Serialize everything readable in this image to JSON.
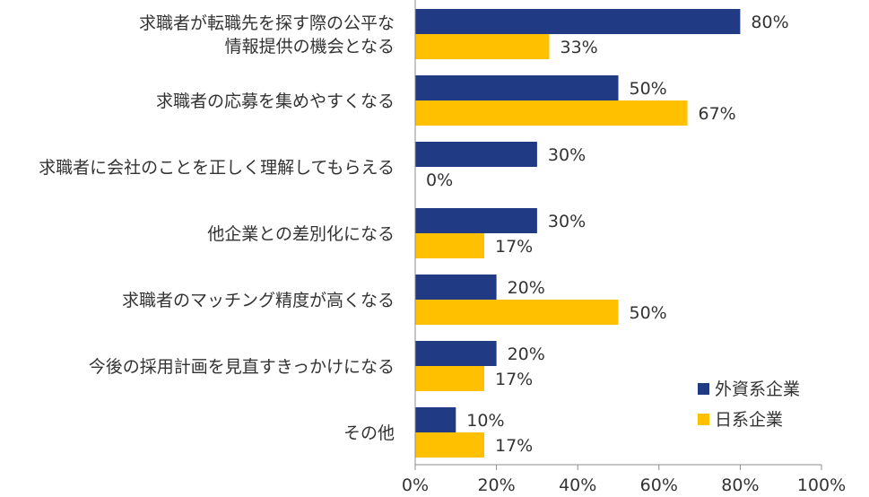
{
  "chart_data": {
    "type": "bar",
    "orientation": "horizontal",
    "categories": [
      [
        "求職者が転職先を探す際の公平な",
        "情報提供の機会となる"
      ],
      [
        "求職者の応募を集めやすくなる"
      ],
      [
        "求職者に会社のことを正しく理解してもらえる"
      ],
      [
        "他企業との差別化になる"
      ],
      [
        "求職者のマッチング精度が高くなる"
      ],
      [
        "今後の採用計画を見直すきっかけになる"
      ],
      [
        "その他"
      ]
    ],
    "series": [
      {
        "name": "外資系企業",
        "color": "#213A84",
        "values": [
          80,
          50,
          30,
          30,
          20,
          20,
          10
        ]
      },
      {
        "name": "日系企業",
        "color": "#FFC000",
        "values": [
          33,
          67,
          0,
          17,
          50,
          17,
          17
        ]
      }
    ],
    "value_suffix": "%",
    "xlim": [
      0,
      100
    ],
    "xticks": [
      0,
      20,
      40,
      60,
      80,
      100
    ],
    "xtick_labels": [
      "0%",
      "20%",
      "40%",
      "60%",
      "80%",
      "100%"
    ],
    "grid": false,
    "legend_position": "bottom-right"
  }
}
